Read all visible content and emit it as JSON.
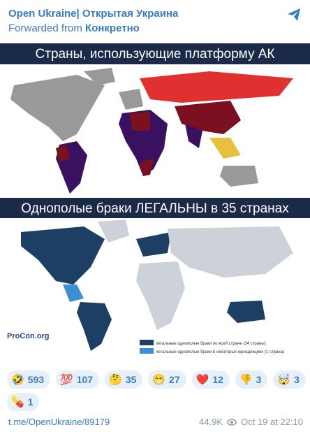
{
  "header": {
    "channel": "Open Ukraine| Открытая Украина",
    "forwarded_prefix": "Forwarded from",
    "forwarded_source": "Конкретно"
  },
  "image": {
    "map1_title": "Страны, использующие платформу АК",
    "map2_title": "Однополые браки ЛЕГАЛЬНЫ в 35 странах",
    "map2_legend": [
      "легальные однополые браки по всей стране (34 страны)",
      "легальные однополые браки в некоторых юрисдикциях (1 страна)"
    ],
    "watermark": "ProCon.org"
  },
  "reactions": [
    {
      "emoji": "🤣",
      "count": 593
    },
    {
      "emoji": "💯",
      "count": 107
    },
    {
      "emoji": "🤔",
      "count": 35
    },
    {
      "emoji": "😁",
      "count": 27
    },
    {
      "emoji": "❤️",
      "count": 12
    },
    {
      "emoji": "👎",
      "count": 3
    },
    {
      "emoji": "🤯",
      "count": 3
    },
    {
      "emoji": "💊",
      "count": 1
    }
  ],
  "footer": {
    "link": "t.me/OpenUkraine/89179",
    "views": "44.9K",
    "time": "Oct 19 at 22:10"
  }
}
